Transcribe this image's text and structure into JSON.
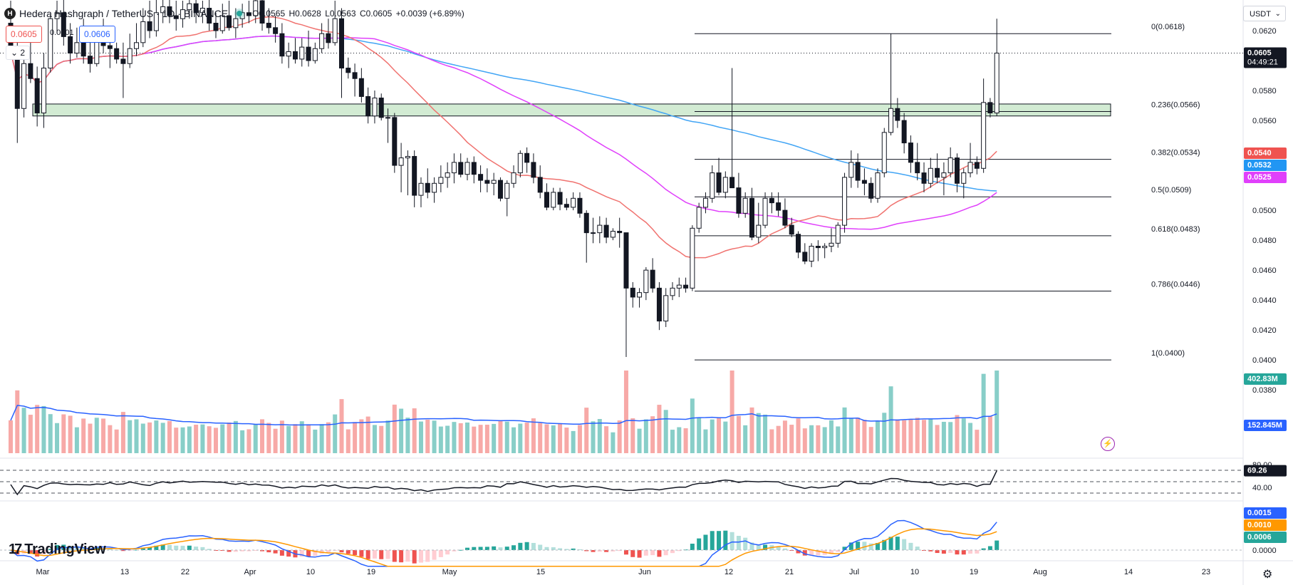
{
  "header": {
    "symbol_icon": "H",
    "title": "Hedera Hashgraph / TetherUS · 1D · BINANCE",
    "ohlc": {
      "open": "O0.0565",
      "high": "H0.0628",
      "low": "L0.0563",
      "close": "C0.0605",
      "change": "+0.0039 (+6.89%)"
    },
    "sell_price": "0.0605",
    "spread": "0.0001",
    "buy_price": "0.0606",
    "indicators_toggle": "2",
    "currency": "USDT"
  },
  "brand": {
    "logo_mark": "17",
    "logo_text": "TradingView"
  },
  "icons": {
    "settings": "gear-icon",
    "chevron": "chevron-down-icon",
    "alert": "lightning-icon"
  },
  "colors": {
    "up": "#26a69a",
    "down": "#ef5350",
    "ma20": "#f0726f",
    "ma50": "#e040fb",
    "ma100": "#42a5f5",
    "volume_ma": "#2962ff",
    "macd": "#2962ff",
    "signal": "#ff9800"
  },
  "chart_data": {
    "type": "candlestick",
    "symbol": "HBARUSDT",
    "timeframe": "1D",
    "x_ticks": [
      "Mar",
      "13",
      "22",
      "Apr",
      "10",
      "19",
      "May",
      "15",
      "Jun",
      "12",
      "21",
      "Jul",
      "10",
      "19",
      "Aug",
      "14",
      "23"
    ],
    "y_ticks": [
      "0.0620",
      "0.0600",
      "0.0580",
      "0.0560",
      "0.0540",
      "0.0520",
      "0.0500",
      "0.0480",
      "0.0460",
      "0.0440",
      "0.0420",
      "0.0400",
      "0.0380"
    ],
    "ylim": [
      0.0372,
      0.063
    ],
    "last_price": "0.0605",
    "countdown": "04:49:21",
    "ma_labels": {
      "ma20": "0.0540",
      "ma100": "0.0532",
      "ma50": "0.0525"
    },
    "support_zone": [
      0.0563,
      0.0571
    ],
    "fibonacci": [
      {
        "label": "0(0.0618)",
        "value": 0.0618
      },
      {
        "label": "0.236(0.0566)",
        "value": 0.0566
      },
      {
        "label": "0.382(0.0534)",
        "value": 0.0534
      },
      {
        "label": "0.5(0.0509)",
        "value": 0.0509
      },
      {
        "label": "0.618(0.0483)",
        "value": 0.0483
      },
      {
        "label": "0.786(0.0446)",
        "value": 0.0446
      },
      {
        "label": "1(0.0400)",
        "value": 0.04
      }
    ],
    "candles_ohlc": [
      [
        0.0625,
        0.064,
        0.061,
        0.0606
      ],
      [
        0.0606,
        0.0612,
        0.0545,
        0.0568
      ],
      [
        0.0568,
        0.0605,
        0.0562,
        0.0598
      ],
      [
        0.0598,
        0.0615,
        0.0585,
        0.0588
      ],
      [
        0.0588,
        0.0596,
        0.0556,
        0.0565
      ],
      [
        0.0565,
        0.0605,
        0.0555,
        0.0595
      ],
      [
        0.0595,
        0.063,
        0.0592,
        0.0628
      ],
      [
        0.0628,
        0.064,
        0.0618,
        0.0632
      ],
      [
        0.0632,
        0.0642,
        0.061,
        0.0616
      ],
      [
        0.0616,
        0.0625,
        0.0598,
        0.0605
      ],
      [
        0.0605,
        0.0622,
        0.0602,
        0.0612
      ],
      [
        0.0612,
        0.0628,
        0.0598,
        0.0603
      ],
      [
        0.0603,
        0.0612,
        0.0592,
        0.0598
      ],
      [
        0.0598,
        0.0623,
        0.0596,
        0.0618
      ],
      [
        0.0618,
        0.0628,
        0.0605,
        0.061
      ],
      [
        0.061,
        0.0618,
        0.0595,
        0.0608
      ],
      [
        0.0608,
        0.0612,
        0.0598,
        0.0601
      ],
      [
        0.0601,
        0.0612,
        0.0575,
        0.0598
      ],
      [
        0.0598,
        0.0618,
        0.0595,
        0.0608
      ],
      [
        0.0608,
        0.0625,
        0.0603,
        0.0612
      ],
      [
        0.0612,
        0.0635,
        0.0609,
        0.0626
      ],
      [
        0.0626,
        0.064,
        0.0615,
        0.062
      ],
      [
        0.062,
        0.0642,
        0.0616,
        0.0632
      ],
      [
        0.0632,
        0.0645,
        0.0625,
        0.0636
      ],
      [
        0.0636,
        0.0645,
        0.0625,
        0.063
      ],
      [
        0.063,
        0.064,
        0.062,
        0.0628
      ],
      [
        0.0628,
        0.064,
        0.0622,
        0.0634
      ],
      [
        0.0634,
        0.0645,
        0.0628,
        0.0638
      ],
      [
        0.0638,
        0.0642,
        0.0625,
        0.0632
      ],
      [
        0.0632,
        0.064,
        0.0625,
        0.0635
      ],
      [
        0.0635,
        0.0642,
        0.062,
        0.0625
      ],
      [
        0.0625,
        0.0632,
        0.0615,
        0.062
      ],
      [
        0.062,
        0.0638,
        0.0618,
        0.063
      ],
      [
        0.063,
        0.064,
        0.062,
        0.0622
      ],
      [
        0.0622,
        0.0635,
        0.0615,
        0.0628
      ],
      [
        0.0628,
        0.0638,
        0.0622,
        0.0632
      ],
      [
        0.0632,
        0.064,
        0.0625,
        0.063
      ],
      [
        0.063,
        0.0645,
        0.0625,
        0.064
      ],
      [
        0.064,
        0.0645,
        0.062,
        0.0625
      ],
      [
        0.0625,
        0.0635,
        0.0618,
        0.0622
      ],
      [
        0.0622,
        0.063,
        0.0612,
        0.0618
      ],
      [
        0.0618,
        0.0625,
        0.0598,
        0.0603
      ],
      [
        0.0603,
        0.0612,
        0.0595,
        0.0606
      ],
      [
        0.0606,
        0.0615,
        0.0598,
        0.0601
      ],
      [
        0.0601,
        0.0615,
        0.0596,
        0.0609
      ],
      [
        0.0609,
        0.062,
        0.0596,
        0.06
      ],
      [
        0.06,
        0.0612,
        0.0598,
        0.0608
      ],
      [
        0.0608,
        0.0625,
        0.0605,
        0.0618
      ],
      [
        0.0618,
        0.0628,
        0.0608,
        0.0612
      ],
      [
        0.0612,
        0.064,
        0.061,
        0.0628
      ],
      [
        0.0628,
        0.0635,
        0.0575,
        0.0595
      ],
      [
        0.0595,
        0.0602,
        0.0588,
        0.0592
      ],
      [
        0.0592,
        0.0598,
        0.0576,
        0.0588
      ],
      [
        0.0588,
        0.0595,
        0.0572,
        0.0576
      ],
      [
        0.0576,
        0.0582,
        0.0558,
        0.0563
      ],
      [
        0.0563,
        0.058,
        0.0558,
        0.0575
      ],
      [
        0.0575,
        0.0578,
        0.056,
        0.0562
      ],
      [
        0.0562,
        0.0568,
        0.0545,
        0.0562
      ],
      [
        0.0562,
        0.0565,
        0.0525,
        0.053
      ],
      [
        0.053,
        0.0545,
        0.0512,
        0.0535
      ],
      [
        0.0535,
        0.054,
        0.051,
        0.0536
      ],
      [
        0.0536,
        0.054,
        0.0502,
        0.051
      ],
      [
        0.051,
        0.0522,
        0.0502,
        0.0518
      ],
      [
        0.0518,
        0.0528,
        0.0508,
        0.0512
      ],
      [
        0.0512,
        0.0522,
        0.0505,
        0.0518
      ],
      [
        0.0518,
        0.053,
        0.0512,
        0.0522
      ],
      [
        0.0522,
        0.0532,
        0.0515,
        0.0525
      ],
      [
        0.0525,
        0.0538,
        0.0518,
        0.0532
      ],
      [
        0.0532,
        0.0538,
        0.0522,
        0.0524
      ],
      [
        0.0524,
        0.0535,
        0.052,
        0.0532
      ],
      [
        0.0532,
        0.0536,
        0.0518,
        0.0524
      ],
      [
        0.0524,
        0.053,
        0.0512,
        0.052
      ],
      [
        0.052,
        0.0528,
        0.0512,
        0.0518
      ],
      [
        0.0518,
        0.0525,
        0.051,
        0.052
      ],
      [
        0.052,
        0.0522,
        0.0506,
        0.0508
      ],
      [
        0.0508,
        0.052,
        0.0496,
        0.0518
      ],
      [
        0.0518,
        0.053,
        0.0515,
        0.0525
      ],
      [
        0.0525,
        0.054,
        0.0522,
        0.0538
      ],
      [
        0.0538,
        0.0542,
        0.0525,
        0.0532
      ],
      [
        0.0532,
        0.0538,
        0.0518,
        0.0522
      ],
      [
        0.0522,
        0.053,
        0.0508,
        0.0512
      ],
      [
        0.0512,
        0.0518,
        0.05,
        0.0502
      ],
      [
        0.0502,
        0.0515,
        0.05,
        0.0512
      ],
      [
        0.0512,
        0.0515,
        0.05,
        0.0504
      ],
      [
        0.0504,
        0.0508,
        0.05,
        0.0502
      ],
      [
        0.0502,
        0.0512,
        0.05,
        0.0508
      ],
      [
        0.0508,
        0.0512,
        0.0495,
        0.0498
      ],
      [
        0.0498,
        0.05,
        0.0465,
        0.0485
      ],
      [
        0.0485,
        0.0495,
        0.0478,
        0.0485
      ],
      [
        0.0485,
        0.0496,
        0.0478,
        0.049
      ],
      [
        0.049,
        0.0495,
        0.0478,
        0.0482
      ],
      [
        0.0482,
        0.0488,
        0.048,
        0.0486
      ],
      [
        0.0486,
        0.0495,
        0.0475,
        0.0485
      ],
      [
        0.0485,
        0.0485,
        0.0402,
        0.0448
      ],
      [
        0.0448,
        0.0452,
        0.0435,
        0.0442
      ],
      [
        0.0442,
        0.0448,
        0.0435,
        0.0445
      ],
      [
        0.0445,
        0.0462,
        0.044,
        0.046
      ],
      [
        0.046,
        0.0468,
        0.0445,
        0.0448
      ],
      [
        0.0448,
        0.0452,
        0.042,
        0.0426
      ],
      [
        0.0426,
        0.0448,
        0.0422,
        0.0443
      ],
      [
        0.0443,
        0.0452,
        0.044,
        0.0448
      ],
      [
        0.0448,
        0.0455,
        0.0442,
        0.045
      ],
      [
        0.045,
        0.0455,
        0.0445,
        0.0448
      ],
      [
        0.0448,
        0.049,
        0.0446,
        0.0488
      ],
      [
        0.0488,
        0.0505,
        0.0485,
        0.0502
      ],
      [
        0.0502,
        0.0512,
        0.0498,
        0.0508
      ],
      [
        0.0508,
        0.053,
        0.0505,
        0.0525
      ],
      [
        0.0525,
        0.0535,
        0.051,
        0.0512
      ],
      [
        0.0512,
        0.0526,
        0.0508,
        0.0522
      ],
      [
        0.0522,
        0.0595,
        0.0515,
        0.0515
      ],
      [
        0.0515,
        0.0525,
        0.0495,
        0.0498
      ],
      [
        0.0498,
        0.0512,
        0.0495,
        0.0508
      ],
      [
        0.0508,
        0.0515,
        0.048,
        0.0482
      ],
      [
        0.0482,
        0.0505,
        0.0478,
        0.049
      ],
      [
        0.049,
        0.0512,
        0.0488,
        0.0508
      ],
      [
        0.0508,
        0.0512,
        0.0498,
        0.0505
      ],
      [
        0.0505,
        0.0512,
        0.0496,
        0.05
      ],
      [
        0.05,
        0.0508,
        0.0488,
        0.049
      ],
      [
        0.049,
        0.0495,
        0.0482,
        0.0484
      ],
      [
        0.0484,
        0.0486,
        0.0468,
        0.0472
      ],
      [
        0.0472,
        0.0478,
        0.0464,
        0.0466
      ],
      [
        0.0466,
        0.0478,
        0.0462,
        0.0476
      ],
      [
        0.0476,
        0.048,
        0.0466,
        0.0475
      ],
      [
        0.0475,
        0.0478,
        0.0468,
        0.0476
      ],
      [
        0.0476,
        0.0488,
        0.0472,
        0.0478
      ],
      [
        0.0478,
        0.0492,
        0.0475,
        0.049
      ],
      [
        0.049,
        0.0525,
        0.0485,
        0.0522
      ],
      [
        0.0522,
        0.054,
        0.0515,
        0.0532
      ],
      [
        0.0532,
        0.0538,
        0.0515,
        0.052
      ],
      [
        0.052,
        0.0528,
        0.051,
        0.0518
      ],
      [
        0.0518,
        0.0522,
        0.0505,
        0.0508
      ],
      [
        0.0508,
        0.0528,
        0.0505,
        0.0525
      ],
      [
        0.0525,
        0.0555,
        0.0522,
        0.0552
      ],
      [
        0.0552,
        0.0618,
        0.055,
        0.0568
      ],
      [
        0.0568,
        0.0575,
        0.0555,
        0.056
      ],
      [
        0.056,
        0.0565,
        0.0538,
        0.0545
      ],
      [
        0.0545,
        0.055,
        0.0525,
        0.0532
      ],
      [
        0.0532,
        0.0545,
        0.052,
        0.0525
      ],
      [
        0.0525,
        0.0532,
        0.0512,
        0.0518
      ],
      [
        0.0518,
        0.0535,
        0.0515,
        0.0528
      ],
      [
        0.0528,
        0.0538,
        0.0518,
        0.0522
      ],
      [
        0.0522,
        0.0532,
        0.051,
        0.0525
      ],
      [
        0.0525,
        0.0542,
        0.0522,
        0.0535
      ],
      [
        0.0535,
        0.0538,
        0.0512,
        0.0518
      ],
      [
        0.0518,
        0.0528,
        0.0508,
        0.0525
      ],
      [
        0.0525,
        0.0545,
        0.0522,
        0.0532
      ],
      [
        0.0532,
        0.0536,
        0.0524,
        0.0528
      ],
      [
        0.0528,
        0.0588,
        0.0525,
        0.0572
      ],
      [
        0.0572,
        0.0575,
        0.0562,
        0.0565
      ],
      [
        0.0565,
        0.0628,
        0.0563,
        0.0605
      ]
    ],
    "volume": {
      "last": "402.83M",
      "ma": "152.845M"
    },
    "rsi": {
      "ticks": [
        "80.00",
        "40.00"
      ],
      "value": "69.26",
      "ylim": [
        20,
        85
      ]
    },
    "macd": {
      "macd": "0.0015",
      "signal": "0.0010",
      "histogram": "0.0006",
      "zero": "0.0000"
    }
  }
}
